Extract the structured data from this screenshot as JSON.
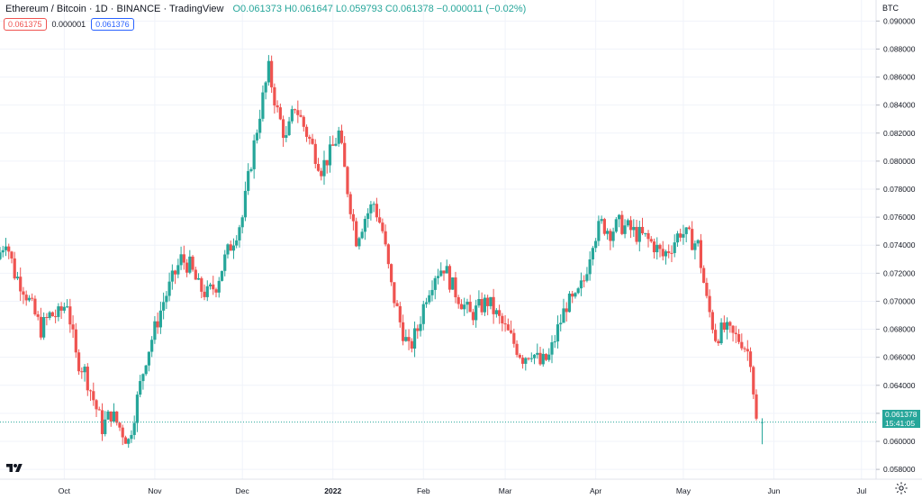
{
  "header": {
    "title": "Ethereum / Bitcoin · 1D · BINANCE · TradingView",
    "ohlc": "O0.061373 H0.061647 L0.059793 C0.061378 −0.000011 (−0.02%)"
  },
  "quotes": {
    "bid": "0.061375",
    "spread": "0.000001",
    "ask": "0.061376"
  },
  "price_axis_unit": "BTC",
  "last_price": {
    "value": "0.061378",
    "countdown": "15:41:05"
  },
  "colors": {
    "up": "#26a69a",
    "down": "#ef5350",
    "grid": "#f0f3fa",
    "text": "#131722"
  },
  "icons": {
    "logo": "tradingview-logo-icon",
    "settings": "gear-icon"
  },
  "chart_data": {
    "type": "candlestick",
    "y_axis": {
      "ylim": [
        0.0573,
        0.0915
      ],
      "ticks": [
        "0.058000",
        "0.060000",
        "0.062000",
        "0.064000",
        "0.066000",
        "0.068000",
        "0.070000",
        "0.072000",
        "0.074000",
        "0.076000",
        "0.078000",
        "0.080000",
        "0.082000",
        "0.084000",
        "0.086000",
        "0.088000",
        "0.090000"
      ],
      "position": "right"
    },
    "x_axis": {
      "start_date": "2021-09-09",
      "end_date": "2022-07-06",
      "ticks": [
        {
          "label": "Oct",
          "date": "2021-10-01"
        },
        {
          "label": "Nov",
          "date": "2021-11-01"
        },
        {
          "label": "Dec",
          "date": "2021-12-01"
        },
        {
          "label": "2022",
          "date": "2022-01-01"
        },
        {
          "label": "Feb",
          "date": "2022-02-01"
        },
        {
          "label": "Mar",
          "date": "2022-03-01"
        },
        {
          "label": "Apr",
          "date": "2022-04-01"
        },
        {
          "label": "May",
          "date": "2022-05-01"
        },
        {
          "label": "Jun",
          "date": "2022-06-01"
        },
        {
          "label": "Jul",
          "date": "2022-07-01"
        }
      ]
    },
    "grid": true,
    "closes": [
      {
        "date": "2021-09-09",
        "close": 0.073
      },
      {
        "date": "2021-09-12",
        "close": 0.0745
      },
      {
        "date": "2021-09-15",
        "close": 0.072
      },
      {
        "date": "2021-09-18",
        "close": 0.071
      },
      {
        "date": "2021-09-21",
        "close": 0.0695
      },
      {
        "date": "2021-09-24",
        "close": 0.068
      },
      {
        "date": "2021-09-27",
        "close": 0.069
      },
      {
        "date": "2021-09-30",
        "close": 0.069
      },
      {
        "date": "2021-10-03",
        "close": 0.07
      },
      {
        "date": "2021-10-06",
        "close": 0.066
      },
      {
        "date": "2021-10-09",
        "close": 0.065
      },
      {
        "date": "2021-10-12",
        "close": 0.063
      },
      {
        "date": "2021-10-15",
        "close": 0.061
      },
      {
        "date": "2021-10-18",
        "close": 0.062
      },
      {
        "date": "2021-10-21",
        "close": 0.061
      },
      {
        "date": "2021-10-24",
        "close": 0.06
      },
      {
        "date": "2021-10-27",
        "close": 0.063
      },
      {
        "date": "2021-10-30",
        "close": 0.066
      },
      {
        "date": "2021-11-02",
        "close": 0.068
      },
      {
        "date": "2021-11-05",
        "close": 0.07
      },
      {
        "date": "2021-11-08",
        "close": 0.0715
      },
      {
        "date": "2021-11-11",
        "close": 0.073
      },
      {
        "date": "2021-11-14",
        "close": 0.0725
      },
      {
        "date": "2021-11-17",
        "close": 0.071
      },
      {
        "date": "2021-11-20",
        "close": 0.0705
      },
      {
        "date": "2021-11-23",
        "close": 0.0712
      },
      {
        "date": "2021-11-26",
        "close": 0.073
      },
      {
        "date": "2021-11-29",
        "close": 0.0745
      },
      {
        "date": "2021-12-02",
        "close": 0.076
      },
      {
        "date": "2021-12-05",
        "close": 0.08
      },
      {
        "date": "2021-12-08",
        "close": 0.0835
      },
      {
        "date": "2021-12-11",
        "close": 0.0865
      },
      {
        "date": "2021-12-14",
        "close": 0.0835
      },
      {
        "date": "2021-12-17",
        "close": 0.0815
      },
      {
        "date": "2021-12-20",
        "close": 0.084
      },
      {
        "date": "2021-12-23",
        "close": 0.0825
      },
      {
        "date": "2021-12-26",
        "close": 0.081
      },
      {
        "date": "2021-12-29",
        "close": 0.0795
      },
      {
        "date": "2022-01-01",
        "close": 0.0805
      },
      {
        "date": "2022-01-04",
        "close": 0.082
      },
      {
        "date": "2022-01-07",
        "close": 0.078
      },
      {
        "date": "2022-01-10",
        "close": 0.0745
      },
      {
        "date": "2022-01-13",
        "close": 0.076
      },
      {
        "date": "2022-01-16",
        "close": 0.077
      },
      {
        "date": "2022-01-19",
        "close": 0.075
      },
      {
        "date": "2022-01-22",
        "close": 0.071
      },
      {
        "date": "2022-01-25",
        "close": 0.0685
      },
      {
        "date": "2022-01-28",
        "close": 0.0665
      },
      {
        "date": "2022-01-31",
        "close": 0.068
      },
      {
        "date": "2022-02-03",
        "close": 0.0705
      },
      {
        "date": "2022-02-06",
        "close": 0.072
      },
      {
        "date": "2022-02-09",
        "close": 0.0725
      },
      {
        "date": "2022-02-12",
        "close": 0.071
      },
      {
        "date": "2022-02-15",
        "close": 0.07
      },
      {
        "date": "2022-02-18",
        "close": 0.069
      },
      {
        "date": "2022-02-21",
        "close": 0.0695
      },
      {
        "date": "2022-02-24",
        "close": 0.07
      },
      {
        "date": "2022-02-27",
        "close": 0.069
      },
      {
        "date": "2022-03-02",
        "close": 0.068
      },
      {
        "date": "2022-03-05",
        "close": 0.067
      },
      {
        "date": "2022-03-08",
        "close": 0.066
      },
      {
        "date": "2022-03-11",
        "close": 0.0665
      },
      {
        "date": "2022-03-14",
        "close": 0.0655
      },
      {
        "date": "2022-03-17",
        "close": 0.066
      },
      {
        "date": "2022-03-20",
        "close": 0.068
      },
      {
        "date": "2022-03-23",
        "close": 0.0698
      },
      {
        "date": "2022-03-26",
        "close": 0.07
      },
      {
        "date": "2022-03-29",
        "close": 0.0715
      },
      {
        "date": "2022-04-01",
        "close": 0.0745
      },
      {
        "date": "2022-04-04",
        "close": 0.0755
      },
      {
        "date": "2022-04-07",
        "close": 0.075
      },
      {
        "date": "2022-04-10",
        "close": 0.0755
      },
      {
        "date": "2022-04-13",
        "close": 0.0752
      },
      {
        "date": "2022-04-16",
        "close": 0.0748
      },
      {
        "date": "2022-04-19",
        "close": 0.0745
      },
      {
        "date": "2022-04-22",
        "close": 0.074
      },
      {
        "date": "2022-04-25",
        "close": 0.0732
      },
      {
        "date": "2022-04-28",
        "close": 0.074
      },
      {
        "date": "2022-05-01",
        "close": 0.075
      },
      {
        "date": "2022-05-04",
        "close": 0.0745
      },
      {
        "date": "2022-05-07",
        "close": 0.074
      },
      {
        "date": "2022-05-10",
        "close": 0.07
      },
      {
        "date": "2022-05-13",
        "close": 0.0675
      },
      {
        "date": "2022-05-16",
        "close": 0.068
      },
      {
        "date": "2022-05-19",
        "close": 0.0675
      },
      {
        "date": "2022-05-22",
        "close": 0.0672
      },
      {
        "date": "2022-05-25",
        "close": 0.066
      },
      {
        "date": "2022-05-27",
        "close": 0.0614
      }
    ],
    "last_candle": {
      "date": "2022-05-28",
      "open": 0.061373,
      "high": 0.061647,
      "low": 0.059793,
      "close": 0.061378
    }
  }
}
